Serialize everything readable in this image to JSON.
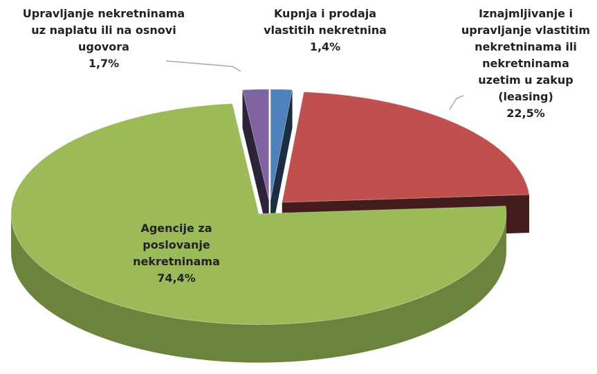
{
  "chart_data": {
    "type": "pie",
    "categories": [
      "Kupnja i prodaja vlastitih nekretnina",
      "Iznajmljivanje i upravljanje vlastitim nekretninama ili nekretninama uzetim u zakup (leasing)",
      "Agencije za poslovanje nekretninama",
      "Upravljanje nekretninama uz naplatu ili na osnovi ugovora"
    ],
    "values": [
      1.4,
      22.5,
      74.4,
      1.7
    ],
    "value_labels": [
      "1,4%",
      "22,5%",
      "74,4%",
      "1,7%"
    ],
    "colors": [
      "#4f81bd",
      "#c0504d",
      "#9bbb59",
      "#8064a2"
    ],
    "style": "3d-exploded"
  }
}
